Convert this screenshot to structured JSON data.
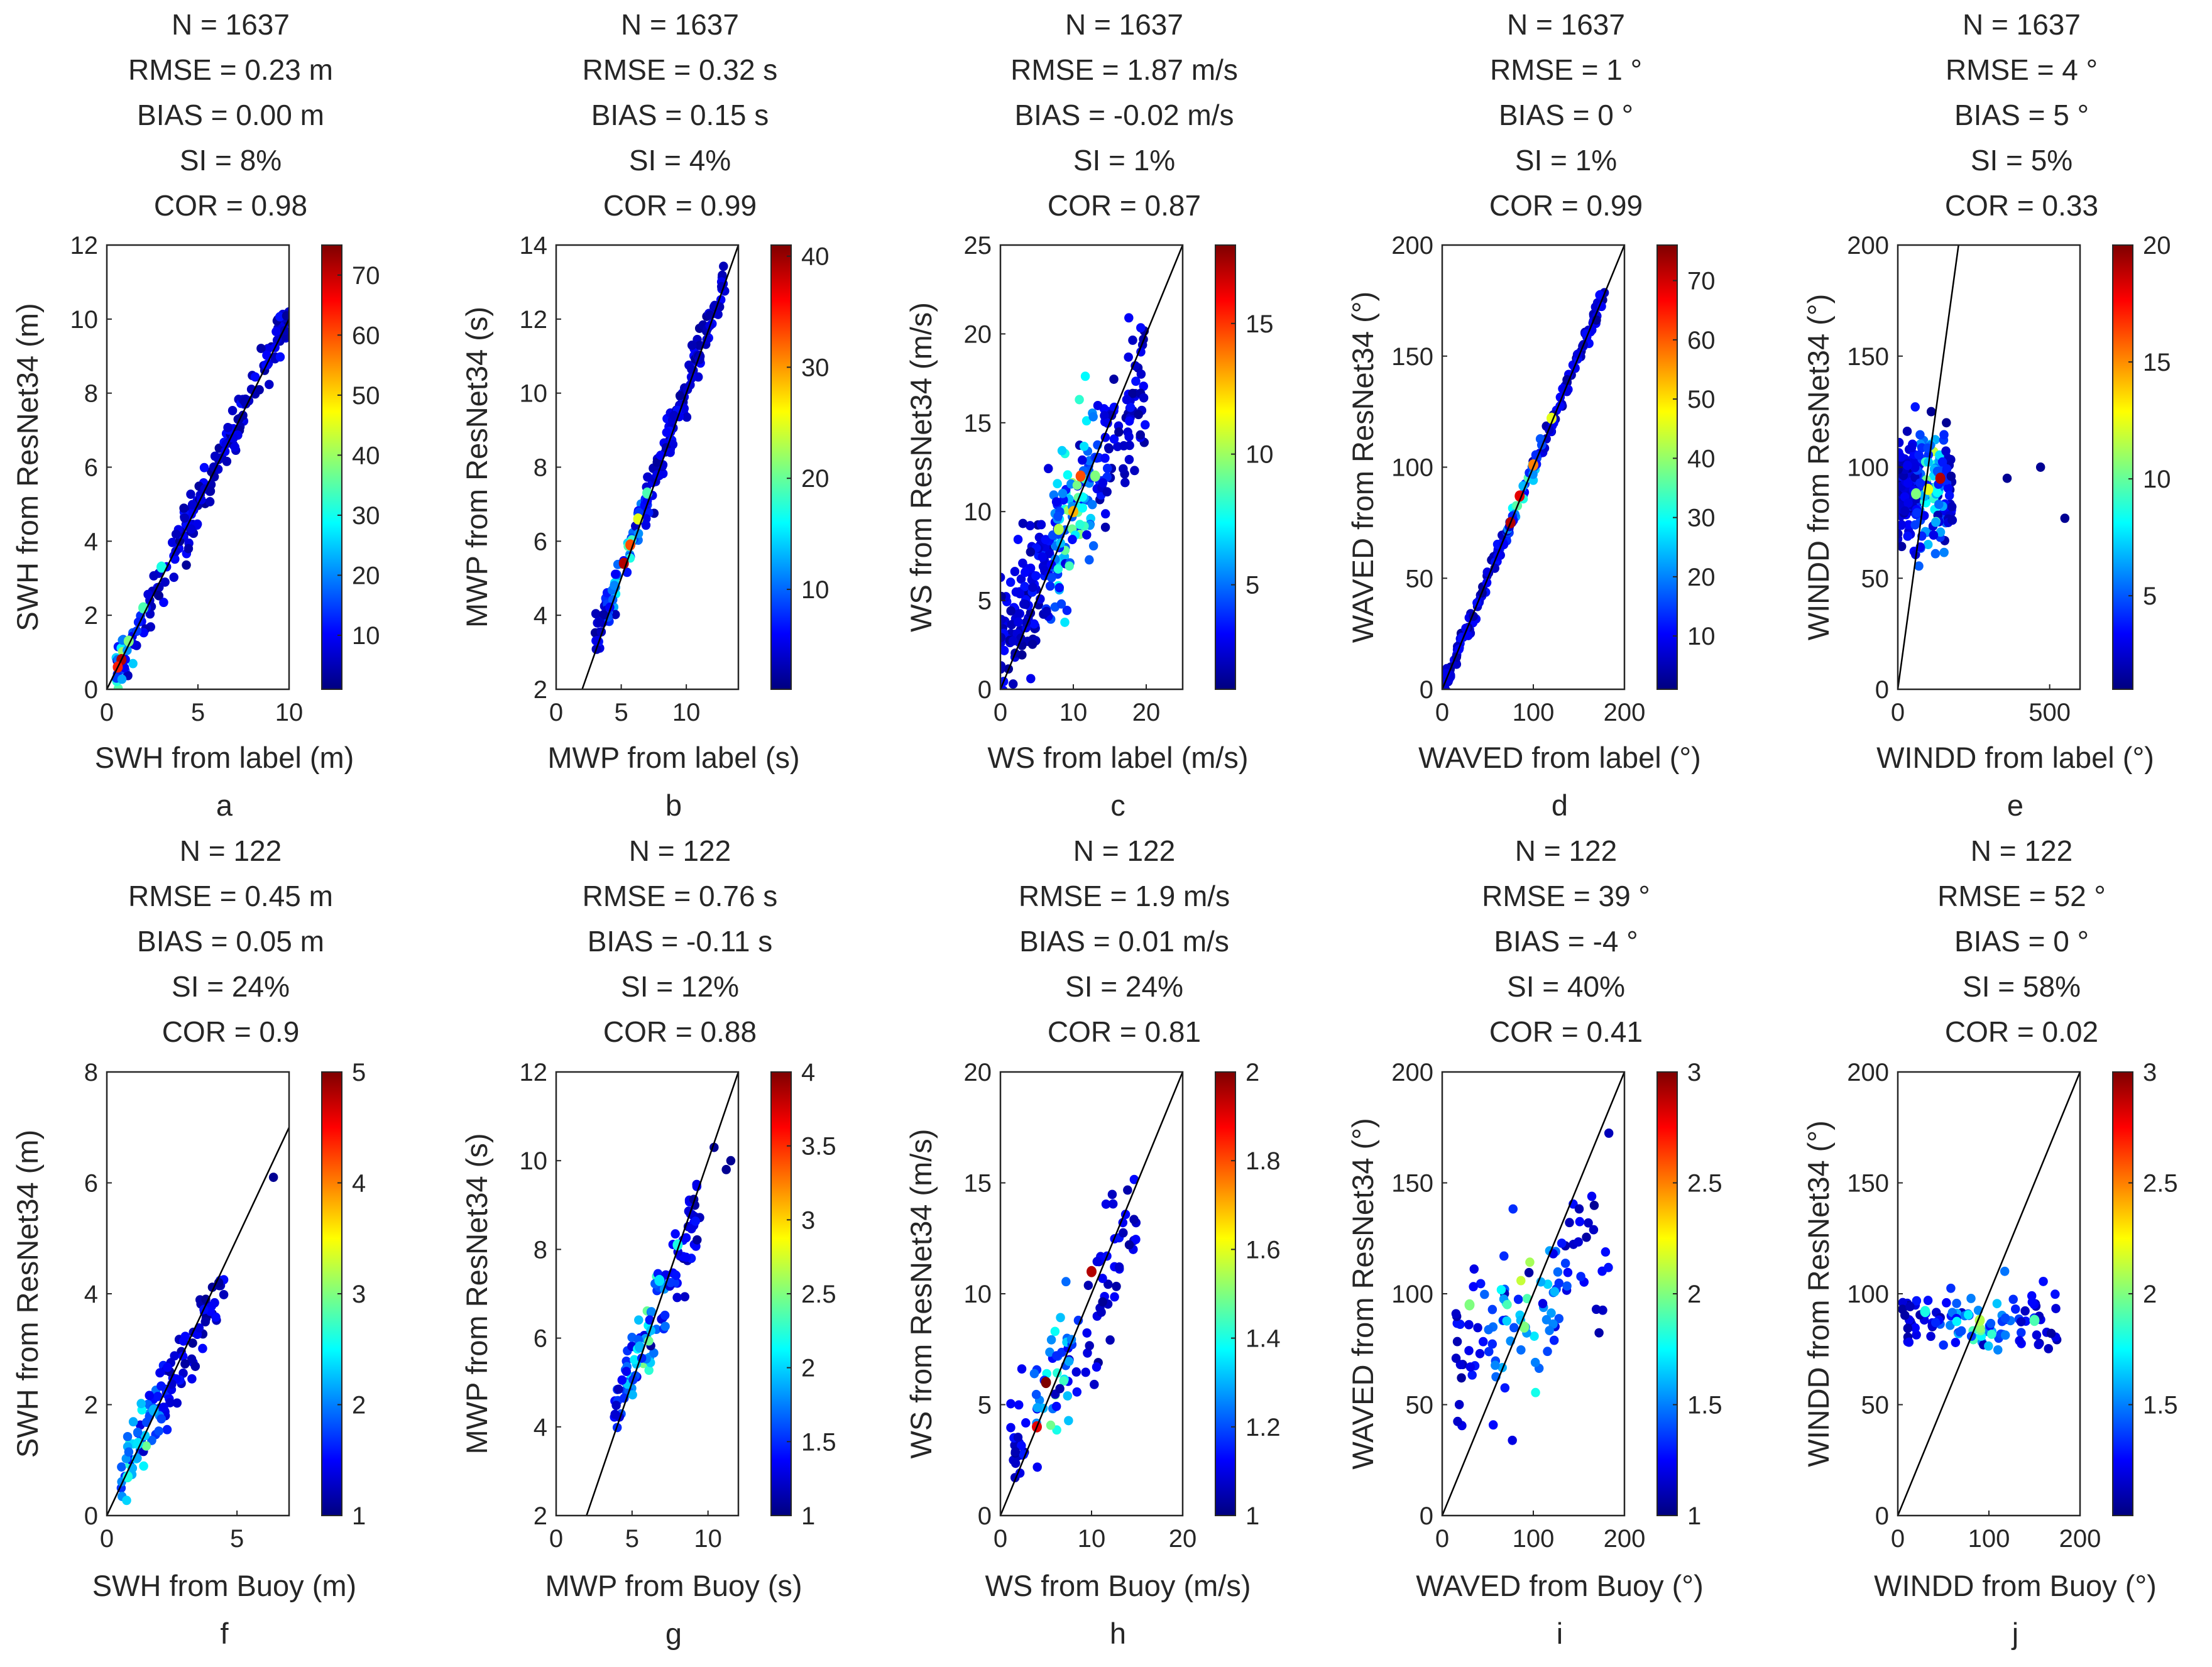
{
  "figure": {
    "colormap": [
      "#00007f",
      "#0000ff",
      "#007fff",
      "#00ffff",
      "#7fff7f",
      "#ffff00",
      "#ff7f00",
      "#ff0000",
      "#7f0000"
    ],
    "axis_color": "#262626",
    "reference_line_color": "#000000"
  },
  "chart_data": [
    {
      "type": "scatter",
      "panel": "a",
      "stats": [
        "N = 1637",
        "RMSE = 0.23 m",
        "BIAS = 0.00 m",
        "SI = 8%",
        "COR = 0.98"
      ],
      "xlabel": "SWH from label (m)",
      "ylabel": "SWH from ResNet34 (m)",
      "xlim": [
        0,
        10
      ],
      "ylim": [
        0,
        12
      ],
      "xticks": [
        0,
        5,
        10
      ],
      "yticks": [
        0,
        2,
        4,
        6,
        8,
        10,
        12
      ],
      "cbar": {
        "min": 1,
        "max": 75,
        "ticks": [
          10,
          20,
          30,
          40,
          50,
          60,
          70
        ]
      },
      "ref_line": [
        [
          0,
          0
        ],
        [
          10,
          10
        ]
      ],
      "cloud": {
        "x0": 0.5,
        "x1": 10,
        "slope": 1.02,
        "intercept": -0.05,
        "spread": 0.35,
        "n": 190,
        "peak_x": 0.8,
        "peak_width": 0.8
      },
      "highlights": [
        {
          "x": 0.8,
          "y": 0.8,
          "level": 0.95
        },
        {
          "x": 0.6,
          "y": 0.6,
          "level": 0.85
        },
        {
          "x": 1.2,
          "y": 1.3,
          "level": 0.5
        },
        {
          "x": 2.0,
          "y": 2.2,
          "level": 0.45
        },
        {
          "x": 3.0,
          "y": 3.3,
          "level": 0.4
        }
      ]
    },
    {
      "type": "scatter",
      "panel": "b",
      "stats": [
        "N = 1637",
        "RMSE = 0.32 s",
        "BIAS = 0.15 s",
        "SI = 4%",
        "COR = 0.99"
      ],
      "xlabel": "MWP from label (s)",
      "ylabel": "MWP from ResNet34 (s)",
      "xlim": [
        0,
        14
      ],
      "ylim": [
        2,
        14
      ],
      "xticks": [
        0,
        5,
        10
      ],
      "yticks": [
        2,
        4,
        6,
        8,
        10,
        12,
        14
      ],
      "cbar": {
        "min": 1,
        "max": 41,
        "ticks": [
          10,
          20,
          30,
          40
        ]
      },
      "ref_line": [
        [
          2,
          2
        ],
        [
          14,
          14
        ]
      ],
      "cloud": {
        "x0": 3,
        "x1": 13,
        "slope": 0.98,
        "intercept": 0.3,
        "spread": 0.28,
        "n": 190,
        "peak_x": 5.3,
        "peak_width": 1.2
      },
      "highlights": [
        {
          "x": 5.2,
          "y": 5.4,
          "level": 0.95
        },
        {
          "x": 5.7,
          "y": 5.9,
          "level": 0.8
        },
        {
          "x": 6.3,
          "y": 6.6,
          "level": 0.6
        },
        {
          "x": 7.0,
          "y": 7.3,
          "level": 0.45
        }
      ]
    },
    {
      "type": "scatter",
      "panel": "c",
      "stats": [
        "N = 1637",
        "RMSE = 1.87 m/s",
        "BIAS = -0.02 m/s",
        "SI = 1%",
        "COR = 0.87"
      ],
      "xlabel": "WS from label (m/s)",
      "ylabel": "WS from ResNet34 (m/s)",
      "xlim": [
        0,
        25
      ],
      "ylim": [
        0,
        25
      ],
      "xticks": [
        0,
        10,
        20
      ],
      "yticks": [
        0,
        5,
        10,
        15,
        20,
        25
      ],
      "cbar": {
        "min": 1,
        "max": 18,
        "ticks": [
          5,
          10,
          15
        ]
      },
      "ref_line": [
        [
          0,
          0
        ],
        [
          25,
          25
        ]
      ],
      "cloud": {
        "x0": 0,
        "x1": 20,
        "slope": 0.75,
        "intercept": 2.2,
        "spread": 2.1,
        "n": 300,
        "peak_x": 10,
        "peak_width": 3
      },
      "highlights": [
        {
          "x": 10,
          "y": 10,
          "level": 0.7
        },
        {
          "x": 11,
          "y": 12,
          "level": 0.8
        },
        {
          "x": 8,
          "y": 9,
          "level": 0.55
        },
        {
          "x": 13,
          "y": 12,
          "level": 0.5
        }
      ]
    },
    {
      "type": "scatter",
      "panel": "d",
      "stats": [
        "N = 1637",
        "RMSE = 1 °",
        "BIAS = 0 °",
        "SI = 1%",
        "COR = 0.99"
      ],
      "xlabel": "WAVED from label (°)",
      "ylabel": "WAVED from ResNet34 (°)",
      "xlim": [
        0,
        200
      ],
      "ylim": [
        0,
        200
      ],
      "xticks": [
        0,
        100,
        200
      ],
      "yticks": [
        0,
        50,
        100,
        150,
        200
      ],
      "cbar": {
        "min": 1,
        "max": 76,
        "ticks": [
          10,
          20,
          30,
          40,
          50,
          60,
          70
        ]
      },
      "ref_line": [
        [
          0,
          0
        ],
        [
          200,
          200
        ]
      ],
      "cloud": {
        "x0": 2,
        "x1": 178,
        "slope": 1.0,
        "intercept": 0,
        "spread": 2.5,
        "n": 190,
        "peak_x": 90,
        "peak_width": 18
      },
      "highlights": [
        {
          "x": 75,
          "y": 75,
          "level": 0.95
        },
        {
          "x": 85,
          "y": 87,
          "level": 0.9
        },
        {
          "x": 100,
          "y": 101,
          "level": 0.75
        },
        {
          "x": 120,
          "y": 122,
          "level": 0.6
        }
      ]
    },
    {
      "type": "scatter",
      "panel": "e",
      "stats": [
        "N = 1637",
        "RMSE = 4 °",
        "BIAS = 5 °",
        "SI = 5%",
        "COR = 0.33"
      ],
      "xlabel": "WINDD from label (°)",
      "ylabel": "WINDD from ResNet34 (°)",
      "xlim": [
        0,
        600
      ],
      "ylim": [
        0,
        200
      ],
      "xticks": [
        0,
        500
      ],
      "yticks": [
        0,
        50,
        100,
        150,
        200
      ],
      "cbar": {
        "min": 1,
        "max": 20,
        "ticks": [
          5,
          10,
          15,
          20
        ]
      },
      "ref_line": [
        [
          0,
          0
        ],
        [
          200,
          200
        ]
      ],
      "cloud": {
        "x0": 0,
        "x1": 180,
        "slope": 0.0,
        "intercept": 90,
        "spread": 11,
        "n": 240,
        "peak_x": 110,
        "peak_width": 40
      },
      "highlights": [
        {
          "x": 140,
          "y": 95,
          "level": 0.95
        },
        {
          "x": 100,
          "y": 90,
          "level": 0.6
        },
        {
          "x": 60,
          "y": 88,
          "level": 0.5
        }
      ],
      "extra_points": [
        [
          360,
          95
        ],
        [
          470,
          100
        ],
        [
          550,
          77
        ],
        [
          110,
          125
        ],
        [
          160,
          120
        ]
      ]
    },
    {
      "type": "scatter",
      "panel": "f",
      "stats": [
        "N = 122",
        "RMSE = 0.45 m",
        "BIAS = 0.05 m",
        "SI = 24%",
        "COR = 0.9"
      ],
      "xlabel": "SWH from Buoy (m)",
      "ylabel": "SWH from ResNet34 (m)",
      "xlim": [
        0,
        7
      ],
      "ylim": [
        0,
        8
      ],
      "xticks": [
        0,
        5
      ],
      "yticks": [
        0,
        2,
        4,
        6,
        8
      ],
      "cbar": {
        "min": 1,
        "max": 5,
        "ticks": [
          1,
          2,
          3,
          4,
          5
        ]
      },
      "ref_line": [
        [
          0,
          0
        ],
        [
          7,
          7
        ]
      ],
      "cloud": {
        "x0": 0.5,
        "x1": 4.5,
        "slope": 0.9,
        "intercept": 0.2,
        "spread": 0.3,
        "n": 110,
        "peak_x": 1.2,
        "peak_width": 0.8
      },
      "highlights": [
        {
          "x": 1.2,
          "y": 1.3,
          "level": 0.35
        },
        {
          "x": 0.8,
          "y": 0.7,
          "level": 0.4
        },
        {
          "x": 1.8,
          "y": 1.9,
          "level": 0.3
        }
      ],
      "extra_points": [
        [
          6.4,
          6.1
        ],
        [
          4.3,
          4.2
        ],
        [
          3.8,
          3.9
        ]
      ]
    },
    {
      "type": "scatter",
      "panel": "g",
      "stats": [
        "N = 122",
        "RMSE = 0.76 s",
        "BIAS = -0.11 s",
        "SI = 12%",
        "COR = 0.88"
      ],
      "xlabel": "MWP from Buoy (s)",
      "ylabel": "MWP from ResNet34 (s)",
      "xlim": [
        0,
        12
      ],
      "ylim": [
        2,
        12
      ],
      "xticks": [
        0,
        5,
        10
      ],
      "yticks": [
        2,
        4,
        6,
        8,
        10,
        12
      ],
      "cbar": {
        "min": 1,
        "max": 4,
        "ticks": [
          1,
          1.5,
          2,
          2.5,
          3,
          3.5,
          4
        ]
      },
      "ref_line": [
        [
          2,
          2
        ],
        [
          12,
          12
        ]
      ],
      "cloud": {
        "x0": 3.8,
        "x1": 9.5,
        "slope": 0.85,
        "intercept": 1.0,
        "spread": 0.45,
        "n": 110,
        "peak_x": 6,
        "peak_width": 1.5
      },
      "highlights": [
        {
          "x": 8,
          "y": 8.1,
          "level": 0.4
        },
        {
          "x": 6.8,
          "y": 7.3,
          "level": 0.35
        },
        {
          "x": 5.5,
          "y": 5.8,
          "level": 0.3
        }
      ],
      "extra_points": [
        [
          11.5,
          10
        ],
        [
          11.2,
          9.8
        ],
        [
          10.4,
          10.3
        ]
      ]
    },
    {
      "type": "scatter",
      "panel": "h",
      "stats": [
        "N = 122",
        "RMSE = 1.9 m/s",
        "BIAS = 0.01 m/s",
        "SI = 24%",
        "COR = 0.81"
      ],
      "xlabel": "WS from Buoy (m/s)",
      "ylabel": "WS from ResNet34 (m/s)",
      "xlim": [
        0,
        20
      ],
      "ylim": [
        0,
        20
      ],
      "xticks": [
        0,
        10,
        20
      ],
      "yticks": [
        0,
        5,
        10,
        15,
        20
      ],
      "cbar": {
        "min": 1,
        "max": 2,
        "ticks": [
          1,
          1.2,
          1.4,
          1.6,
          1.8,
          2
        ]
      },
      "ref_line": [
        [
          0,
          0
        ],
        [
          20,
          20
        ]
      ],
      "cloud": {
        "x0": 1,
        "x1": 15,
        "slope": 0.75,
        "intercept": 2.0,
        "spread": 1.7,
        "n": 110,
        "peak_x": 6,
        "peak_width": 2
      },
      "highlights": [
        {
          "x": 5,
          "y": 6,
          "level": 1.0
        },
        {
          "x": 10,
          "y": 11,
          "level": 0.95
        },
        {
          "x": 4,
          "y": 4,
          "level": 0.9
        }
      ]
    },
    {
      "type": "scatter",
      "panel": "i",
      "stats": [
        "N = 122",
        "RMSE = 39 °",
        "BIAS = -4 °",
        "SI = 40%",
        "COR = 0.41"
      ],
      "xlabel": "WAVED from Buoy (°)",
      "ylabel": "WAVED from ResNet34 (°)",
      "xlim": [
        0,
        200
      ],
      "ylim": [
        0,
        200
      ],
      "xticks": [
        0,
        100,
        200
      ],
      "yticks": [
        0,
        50,
        100,
        150,
        200
      ],
      "cbar": {
        "min": 1,
        "max": 3,
        "ticks": [
          1,
          1.5,
          2,
          2.5,
          3
        ]
      },
      "ref_line": [
        [
          0,
          0
        ],
        [
          200,
          200
        ]
      ],
      "cloud": {
        "x0": 15,
        "x1": 185,
        "slope": 0.35,
        "intercept": 65,
        "spread": 18,
        "n": 110,
        "peak_x": 90,
        "peak_width": 40
      },
      "highlights": [
        {
          "x": 90,
          "y": 85,
          "level": 0.5
        },
        {
          "x": 30,
          "y": 95,
          "level": 0.5
        }
      ]
    },
    {
      "type": "scatter",
      "panel": "j",
      "stats": [
        "N = 122",
        "RMSE = 52 °",
        "BIAS = 0 °",
        "SI = 58%",
        "COR = 0.02"
      ],
      "xlabel": "WINDD from Buoy (°)",
      "ylabel": "WINDD from ResNet34 (°)",
      "xlim": [
        0,
        200
      ],
      "ylim": [
        0,
        200
      ],
      "xticks": [
        0,
        100,
        200
      ],
      "yticks": [
        0,
        50,
        100,
        150,
        200
      ],
      "cbar": {
        "min": 1,
        "max": 3,
        "ticks": [
          1.5,
          2,
          2.5,
          3
        ]
      },
      "ref_line": [
        [
          0,
          0
        ],
        [
          200,
          200
        ]
      ],
      "cloud": {
        "x0": 5,
        "x1": 180,
        "slope": 0.0,
        "intercept": 88,
        "spread": 7,
        "n": 110,
        "peak_x": 90,
        "peak_width": 40
      },
      "highlights": [
        {
          "x": 90,
          "y": 88,
          "level": 0.55
        },
        {
          "x": 150,
          "y": 88,
          "level": 0.45
        },
        {
          "x": 30,
          "y": 92,
          "level": 0.4
        }
      ]
    }
  ]
}
